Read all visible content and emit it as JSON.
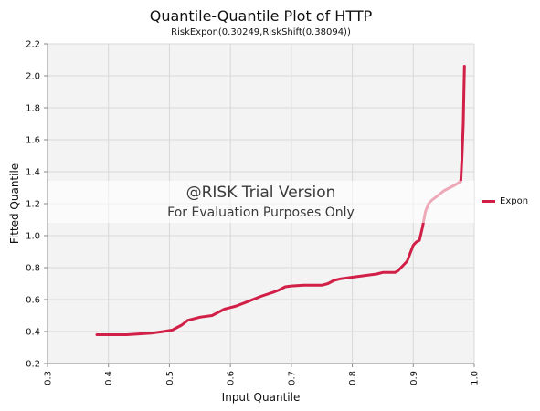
{
  "chart_data": {
    "type": "line",
    "title": "Quantile-Quantile Plot of HTTP",
    "subtitle": "RiskExpon(0.30249,RiskShift(0.38094))",
    "xlabel": "Input Quantile",
    "ylabel": "Fitted Quantile",
    "xlim": [
      0.3,
      1.0
    ],
    "ylim": [
      0.2,
      2.2
    ],
    "xticks": [
      "0.3",
      "0.4",
      "0.5",
      "0.6",
      "0.7",
      "0.8",
      "0.9",
      "1.0"
    ],
    "yticks": [
      "0.2",
      "0.4",
      "0.6",
      "0.8",
      "1.0",
      "1.2",
      "1.4",
      "1.6",
      "1.8",
      "2.0",
      "2.2"
    ],
    "grid": true,
    "legend_position": "right",
    "series": [
      {
        "name": "Expon",
        "color": "#d21f47",
        "x": [
          0.381,
          0.4,
          0.43,
          0.45,
          0.47,
          0.49,
          0.505,
          0.51,
          0.52,
          0.53,
          0.55,
          0.57,
          0.58,
          0.59,
          0.61,
          0.63,
          0.65,
          0.67,
          0.68,
          0.69,
          0.7,
          0.72,
          0.75,
          0.76,
          0.77,
          0.78,
          0.8,
          0.82,
          0.84,
          0.85,
          0.87,
          0.875,
          0.88,
          0.89,
          0.895,
          0.9,
          0.905,
          0.91,
          0.915,
          0.92,
          0.925,
          0.93,
          0.94,
          0.95,
          0.96,
          0.97,
          0.978,
          0.98,
          0.982,
          0.983,
          0.984
        ],
        "y": [
          0.38,
          0.38,
          0.38,
          0.385,
          0.39,
          0.4,
          0.41,
          0.42,
          0.44,
          0.47,
          0.49,
          0.5,
          0.52,
          0.54,
          0.56,
          0.59,
          0.62,
          0.645,
          0.66,
          0.68,
          0.685,
          0.69,
          0.69,
          0.7,
          0.72,
          0.73,
          0.74,
          0.75,
          0.76,
          0.77,
          0.77,
          0.78,
          0.8,
          0.84,
          0.89,
          0.94,
          0.96,
          0.97,
          1.05,
          1.15,
          1.2,
          1.22,
          1.25,
          1.28,
          1.3,
          1.32,
          1.34,
          1.5,
          1.7,
          1.9,
          2.06
        ]
      }
    ]
  },
  "watermark": {
    "line1": "@RISK Trial Version",
    "line2": "For Evaluation Purposes Only"
  }
}
